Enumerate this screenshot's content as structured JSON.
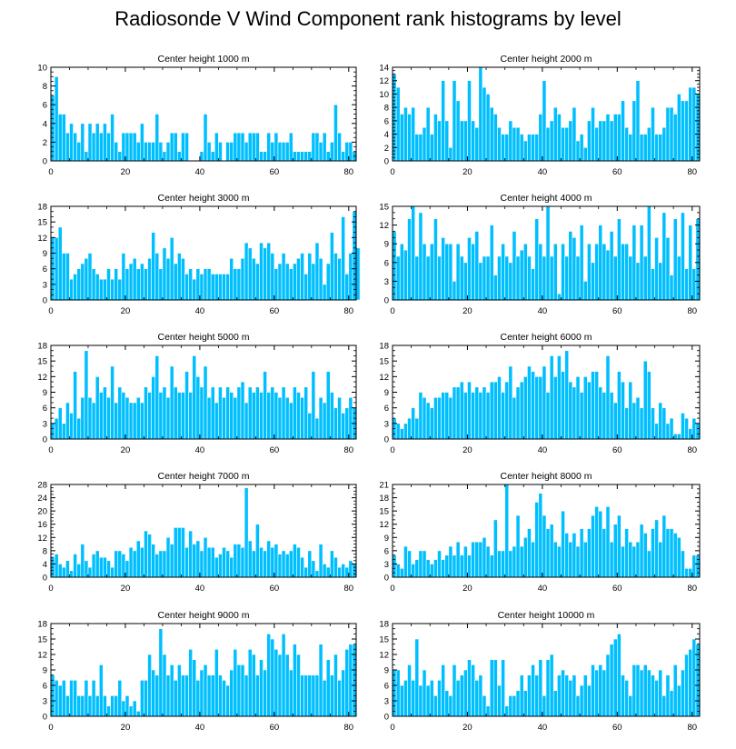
{
  "title": "Radiosonde V Wind Component rank histograms by level",
  "colors": {
    "bar": "#00bfff",
    "bar_edge": "#ffffff",
    "axis": "#000000"
  },
  "chart_data": [
    {
      "type": "bar",
      "title": "Center height 1000 m",
      "xlim": [
        0,
        82
      ],
      "ylim": [
        0,
        10
      ],
      "xticks": [
        0,
        20,
        40,
        60,
        80
      ],
      "yticks": [
        0,
        2,
        4,
        6,
        8,
        10
      ],
      "values": [
        7,
        9,
        5,
        5,
        3,
        4,
        3,
        2,
        4,
        1,
        4,
        3,
        4,
        3,
        4,
        3,
        5,
        2,
        1,
        3,
        3,
        3,
        3,
        2,
        4,
        2,
        2,
        2,
        5,
        2,
        1,
        2,
        3,
        3,
        1,
        3,
        3,
        0,
        0,
        0,
        1,
        5,
        2,
        1,
        3,
        2,
        0,
        2,
        2,
        3,
        3,
        3,
        2,
        3,
        3,
        3,
        1,
        1,
        3,
        2,
        3,
        2,
        2,
        2,
        3,
        1,
        1,
        1,
        1,
        1,
        3,
        3,
        2,
        3,
        1,
        2,
        6,
        3,
        1,
        2,
        2,
        1
      ]
    },
    {
      "type": "bar",
      "title": "Center height 2000 m",
      "xlim": [
        0,
        82
      ],
      "ylim": [
        0,
        14
      ],
      "xticks": [
        0,
        20,
        40,
        60,
        80
      ],
      "yticks": [
        0,
        2,
        4,
        6,
        8,
        10,
        12,
        14
      ],
      "values": [
        13,
        11,
        7,
        8,
        7,
        8,
        4,
        4,
        5,
        8,
        4,
        7,
        6,
        12,
        6,
        2,
        12,
        9,
        6,
        6,
        12,
        6,
        5,
        14,
        11,
        10,
        8,
        7,
        5,
        4,
        4,
        6,
        5,
        5,
        4,
        3,
        4,
        4,
        4,
        7,
        12,
        5,
        6,
        8,
        7,
        5,
        5,
        6,
        8,
        3,
        4,
        2,
        6,
        8,
        5,
        6,
        6,
        7,
        6,
        7,
        7,
        9,
        5,
        4,
        9,
        12,
        4,
        4,
        5,
        8,
        4,
        4,
        5,
        8,
        8,
        7,
        10,
        9,
        9,
        11,
        11,
        10
      ]
    },
    {
      "type": "bar",
      "title": "Center height 3000 m",
      "xlim": [
        0,
        82
      ],
      "ylim": [
        0,
        18
      ],
      "xticks": [
        0,
        20,
        40,
        60,
        80
      ],
      "yticks": [
        0,
        3,
        6,
        9,
        12,
        15,
        18
      ],
      "values": [
        12,
        12,
        14,
        9,
        9,
        4,
        5,
        6,
        7,
        8,
        9,
        6,
        5,
        4,
        4,
        6,
        4,
        6,
        4,
        9,
        6,
        7,
        8,
        6,
        7,
        6,
        8,
        13,
        9,
        6,
        10,
        8,
        12,
        7,
        9,
        8,
        5,
        6,
        4,
        6,
        5,
        6,
        6,
        5,
        5,
        5,
        5,
        5,
        8,
        6,
        6,
        8,
        11,
        10,
        8,
        7,
        11,
        10,
        11,
        9,
        6,
        7,
        9,
        7,
        6,
        7,
        8,
        9,
        5,
        9,
        7,
        11,
        8,
        3,
        7,
        13,
        9,
        8,
        16,
        5,
        9,
        17,
        10
      ]
    },
    {
      "type": "bar",
      "title": "Center height 4000 m",
      "xlim": [
        0,
        82
      ],
      "ylim": [
        0,
        15
      ],
      "xticks": [
        0,
        20,
        40,
        60,
        80
      ],
      "yticks": [
        0,
        3,
        6,
        9,
        12,
        15
      ],
      "values": [
        11,
        7,
        9,
        8,
        13,
        15,
        7,
        14,
        9,
        7,
        9,
        13,
        7,
        10,
        9,
        9,
        3,
        9,
        7,
        6,
        10,
        9,
        11,
        6,
        7,
        7,
        12,
        4,
        7,
        9,
        7,
        6,
        11,
        7,
        8,
        9,
        7,
        5,
        13,
        9,
        7,
        15,
        7,
        9,
        1,
        9,
        7,
        11,
        10,
        7,
        12,
        3,
        9,
        6,
        9,
        12,
        9,
        8,
        11,
        7,
        13,
        9,
        9,
        7,
        12,
        6,
        12,
        7,
        15,
        5,
        10,
        6,
        14,
        10,
        4,
        13,
        7,
        14,
        5,
        12,
        5,
        13
      ]
    },
    {
      "type": "bar",
      "title": "Center height 5000 m",
      "xlim": [
        0,
        82
      ],
      "ylim": [
        0,
        18
      ],
      "xticks": [
        0,
        20,
        40,
        60,
        80
      ],
      "yticks": [
        0,
        3,
        6,
        9,
        12,
        15,
        18
      ],
      "values": [
        3,
        4,
        6,
        3,
        7,
        5,
        13,
        4,
        8,
        17,
        8,
        7,
        12,
        9,
        10,
        8,
        14,
        7,
        10,
        9,
        8,
        7,
        7,
        8,
        7,
        10,
        9,
        12,
        16,
        9,
        10,
        8,
        14,
        10,
        9,
        9,
        13,
        9,
        16,
        12,
        10,
        14,
        8,
        10,
        7,
        10,
        8,
        10,
        9,
        8,
        10,
        11,
        7,
        10,
        9,
        10,
        9,
        13,
        9,
        10,
        9,
        8,
        10,
        8,
        7,
        10,
        9,
        8,
        10,
        5,
        13,
        4,
        8,
        7,
        13,
        9,
        6,
        8,
        5,
        6,
        8,
        6
      ]
    },
    {
      "type": "bar",
      "title": "Center height 6000 m",
      "xlim": [
        0,
        82
      ],
      "ylim": [
        0,
        18
      ],
      "xticks": [
        0,
        20,
        40,
        60,
        80
      ],
      "yticks": [
        0,
        3,
        6,
        9,
        12,
        15,
        18
      ],
      "values": [
        4,
        3,
        2,
        3,
        4,
        6,
        4,
        9,
        8,
        7,
        6,
        8,
        8,
        9,
        9,
        8,
        10,
        10,
        11,
        9,
        11,
        9,
        10,
        9,
        10,
        9,
        11,
        11,
        12,
        9,
        11,
        14,
        8,
        10,
        11,
        12,
        14,
        13,
        12,
        12,
        14,
        9,
        16,
        12,
        16,
        13,
        17,
        11,
        10,
        12,
        9,
        12,
        11,
        13,
        13,
        10,
        9,
        16,
        9,
        7,
        13,
        11,
        6,
        11,
        7,
        8,
        6,
        15,
        13,
        6,
        3,
        7,
        6,
        3,
        4,
        1,
        1,
        5,
        4,
        2,
        4,
        3
      ]
    },
    {
      "type": "bar",
      "title": "Center height 7000 m",
      "xlim": [
        0,
        82
      ],
      "ylim": [
        0,
        28
      ],
      "xticks": [
        0,
        20,
        40,
        60,
        80
      ],
      "yticks": [
        0,
        4,
        8,
        12,
        16,
        20,
        24,
        28
      ],
      "values": [
        6,
        7,
        4,
        3,
        5,
        2,
        7,
        4,
        10,
        5,
        3,
        7,
        8,
        6,
        6,
        5,
        3,
        8,
        8,
        7,
        5,
        9,
        8,
        11,
        9,
        14,
        13,
        10,
        7,
        8,
        8,
        12,
        10,
        15,
        15,
        15,
        9,
        14,
        10,
        11,
        8,
        12,
        9,
        9,
        6,
        7,
        9,
        8,
        6,
        10,
        10,
        9,
        27,
        11,
        8,
        16,
        9,
        8,
        11,
        9,
        10,
        7,
        8,
        7,
        8,
        10,
        9,
        6,
        3,
        8,
        5,
        2,
        10,
        4,
        3,
        8,
        6,
        3,
        4,
        3,
        5,
        4
      ]
    },
    {
      "type": "bar",
      "title": "Center height 8000 m",
      "xlim": [
        0,
        82
      ],
      "ylim": [
        0,
        21
      ],
      "xticks": [
        0,
        20,
        40,
        60,
        80
      ],
      "yticks": [
        0,
        3,
        6,
        9,
        12,
        15,
        18,
        21
      ],
      "values": [
        5,
        3,
        2,
        7,
        6,
        3,
        4,
        6,
        6,
        4,
        3,
        4,
        6,
        4,
        5,
        7,
        5,
        8,
        5,
        7,
        5,
        8,
        8,
        8,
        9,
        7,
        5,
        13,
        6,
        6,
        21,
        6,
        7,
        14,
        7,
        9,
        11,
        8,
        17,
        19,
        14,
        11,
        12,
        8,
        7,
        15,
        10,
        8,
        10,
        7,
        11,
        8,
        11,
        14,
        16,
        15,
        11,
        16,
        8,
        12,
        14,
        7,
        11,
        8,
        7,
        8,
        12,
        10,
        6,
        11,
        13,
        8,
        14,
        11,
        11,
        10,
        9,
        6,
        2,
        2,
        5,
        5
      ]
    },
    {
      "type": "bar",
      "title": "Center height 9000 m",
      "xlim": [
        0,
        82
      ],
      "ylim": [
        0,
        18
      ],
      "xticks": [
        0,
        20,
        40,
        60,
        80
      ],
      "yticks": [
        0,
        3,
        6,
        9,
        12,
        15,
        18
      ],
      "values": [
        8,
        7,
        6,
        7,
        4,
        7,
        7,
        4,
        4,
        7,
        4,
        7,
        4,
        10,
        4,
        2,
        4,
        4,
        7,
        3,
        4,
        2,
        3,
        1,
        7,
        7,
        12,
        9,
        8,
        17,
        12,
        8,
        10,
        7,
        10,
        8,
        8,
        13,
        11,
        7,
        9,
        10,
        8,
        8,
        13,
        8,
        7,
        6,
        9,
        13,
        10,
        10,
        8,
        13,
        12,
        8,
        11,
        9,
        16,
        15,
        13,
        12,
        16,
        12,
        9,
        14,
        12,
        8,
        8,
        8,
        8,
        8,
        14,
        7,
        11,
        8,
        12,
        7,
        9,
        13,
        14,
        14
      ]
    },
    {
      "type": "bar",
      "title": "Center height 10000 m",
      "xlim": [
        0,
        82
      ],
      "ylim": [
        0,
        18
      ],
      "xticks": [
        0,
        20,
        40,
        60,
        80
      ],
      "yticks": [
        0,
        3,
        6,
        9,
        12,
        15,
        18
      ],
      "values": [
        9,
        9,
        6,
        7,
        10,
        7,
        15,
        6,
        9,
        6,
        7,
        4,
        7,
        10,
        5,
        4,
        10,
        7,
        8,
        9,
        11,
        10,
        7,
        8,
        4,
        2,
        11,
        11,
        6,
        11,
        2,
        4,
        4,
        5,
        8,
        5,
        8,
        10,
        8,
        11,
        4,
        11,
        12,
        5,
        8,
        9,
        8,
        7,
        8,
        4,
        6,
        8,
        6,
        10,
        9,
        10,
        9,
        12,
        14,
        15,
        16,
        8,
        7,
        4,
        10,
        10,
        9,
        10,
        9,
        8,
        7,
        9,
        4,
        8,
        5,
        10,
        6,
        9,
        12,
        13,
        15,
        14
      ]
    }
  ]
}
